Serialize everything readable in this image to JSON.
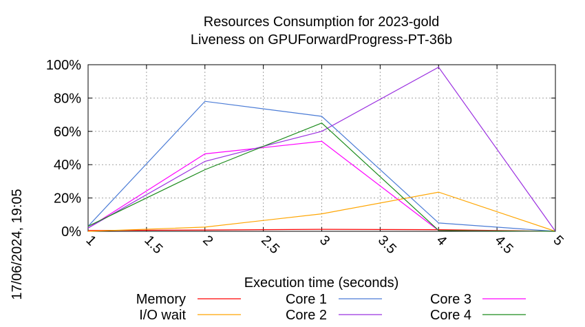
{
  "timestamp": "17/06/2024, 19:05",
  "chart_data": {
    "type": "line",
    "title": [
      "Resources Consumption for 2023-gold",
      "Liveness on GPUForwardProgress-PT-36b"
    ],
    "xlabel": "Execution time (seconds)",
    "ylabel": "",
    "xlim": [
      1,
      5
    ],
    "ylim": [
      0,
      100
    ],
    "x_ticks": [
      "1",
      "1.5",
      "2",
      "2.5",
      "3",
      "3.5",
      "4",
      "4.5",
      "5"
    ],
    "y_ticks": [
      "0%",
      "20%",
      "40%",
      "60%",
      "80%",
      "100%"
    ],
    "grid": true,
    "legend_position": "bottom",
    "series": [
      {
        "name": "Memory",
        "color": "#ff0000",
        "x": [
          1,
          2,
          3,
          4,
          5
        ],
        "y": [
          0.5,
          0.8,
          1.2,
          1.0,
          0
        ]
      },
      {
        "name": "Core 1",
        "color": "#4a7bd6",
        "x": [
          1,
          2,
          3,
          4,
          5
        ],
        "y": [
          3,
          78,
          69,
          5,
          0
        ]
      },
      {
        "name": "Core 3",
        "color": "#ff00ff",
        "x": [
          1,
          2,
          3,
          4,
          5
        ],
        "y": [
          2,
          46.5,
          54,
          0.5,
          0
        ]
      },
      {
        "name": "I/O wait",
        "color": "#ffa500",
        "x": [
          1,
          2,
          3,
          4,
          5
        ],
        "y": [
          0,
          2.5,
          10.5,
          23.5,
          0
        ]
      },
      {
        "name": "Core 2",
        "color": "#9b30e0",
        "x": [
          1,
          2,
          3,
          4,
          5
        ],
        "y": [
          2,
          42,
          60,
          98.5,
          0
        ]
      },
      {
        "name": "Core 4",
        "color": "#1a8a1a",
        "x": [
          1,
          2,
          3,
          4,
          5
        ],
        "y": [
          3,
          37,
          65,
          0.5,
          0
        ]
      }
    ]
  }
}
